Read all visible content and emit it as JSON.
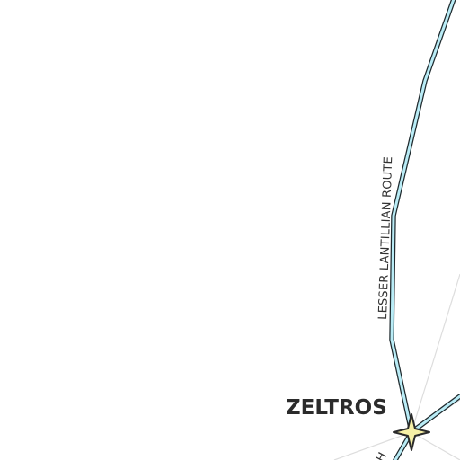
{
  "map": {
    "background_color": "#ffffff",
    "route_color": "#b9ecf6",
    "route_outline_color": "#1f2a2e",
    "grid_color": "#dddddd",
    "marker_color": "#f6f0a6"
  },
  "routes": [
    {
      "name": "LESSER LANTILLIAN ROUTE"
    },
    {
      "name": "H"
    }
  ],
  "places": [
    {
      "name": "ZELTROS",
      "marker_icon": "star-icon"
    }
  ]
}
